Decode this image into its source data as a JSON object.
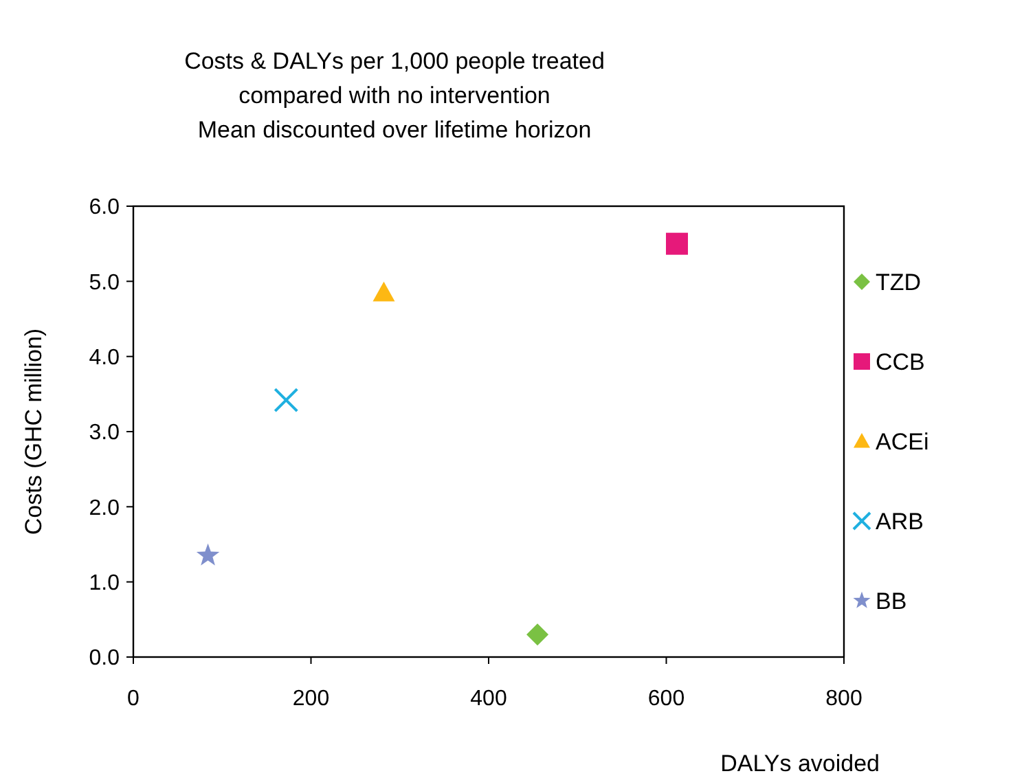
{
  "chart_data": {
    "type": "scatter",
    "title": "Costs & DALYs per 1,000 people treated\ncompared with no intervention\nMean discounted over lifetime horizon",
    "xlabel": "DALYs avoided",
    "ylabel": "Costs (GHC million)",
    "xlim": [
      0,
      800
    ],
    "xticks": [
      0,
      200,
      400,
      600,
      800
    ],
    "ylim": [
      0,
      6
    ],
    "yticks": [
      {
        "value": 0,
        "label": "0.0"
      },
      {
        "value": 1,
        "label": "1.0"
      },
      {
        "value": 2,
        "label": "2.0"
      },
      {
        "value": 3,
        "label": "3.0"
      },
      {
        "value": 4,
        "label": "4.0"
      },
      {
        "value": 5,
        "label": "5.0"
      },
      {
        "value": 6,
        "label": "6.0"
      }
    ],
    "grid": false,
    "legend": "right",
    "series": [
      {
        "name": "TZD",
        "color": "#7ac143",
        "marker": "diamond",
        "x": [
          455
        ],
        "values": [
          0.3
        ]
      },
      {
        "name": "CCB",
        "color": "#e6197a",
        "marker": "square",
        "x": [
          612
        ],
        "values": [
          5.5
        ]
      },
      {
        "name": "ACEi",
        "color": "#fdb813",
        "marker": "triangle",
        "x": [
          282
        ],
        "values": [
          4.85
        ]
      },
      {
        "name": "ARB",
        "color": "#1fb0e0",
        "marker": "cross",
        "x": [
          172
        ],
        "values": [
          3.42
        ]
      },
      {
        "name": "BB",
        "color": "#7f8fcc",
        "marker": "star",
        "x": [
          84
        ],
        "values": [
          1.35
        ]
      }
    ]
  }
}
